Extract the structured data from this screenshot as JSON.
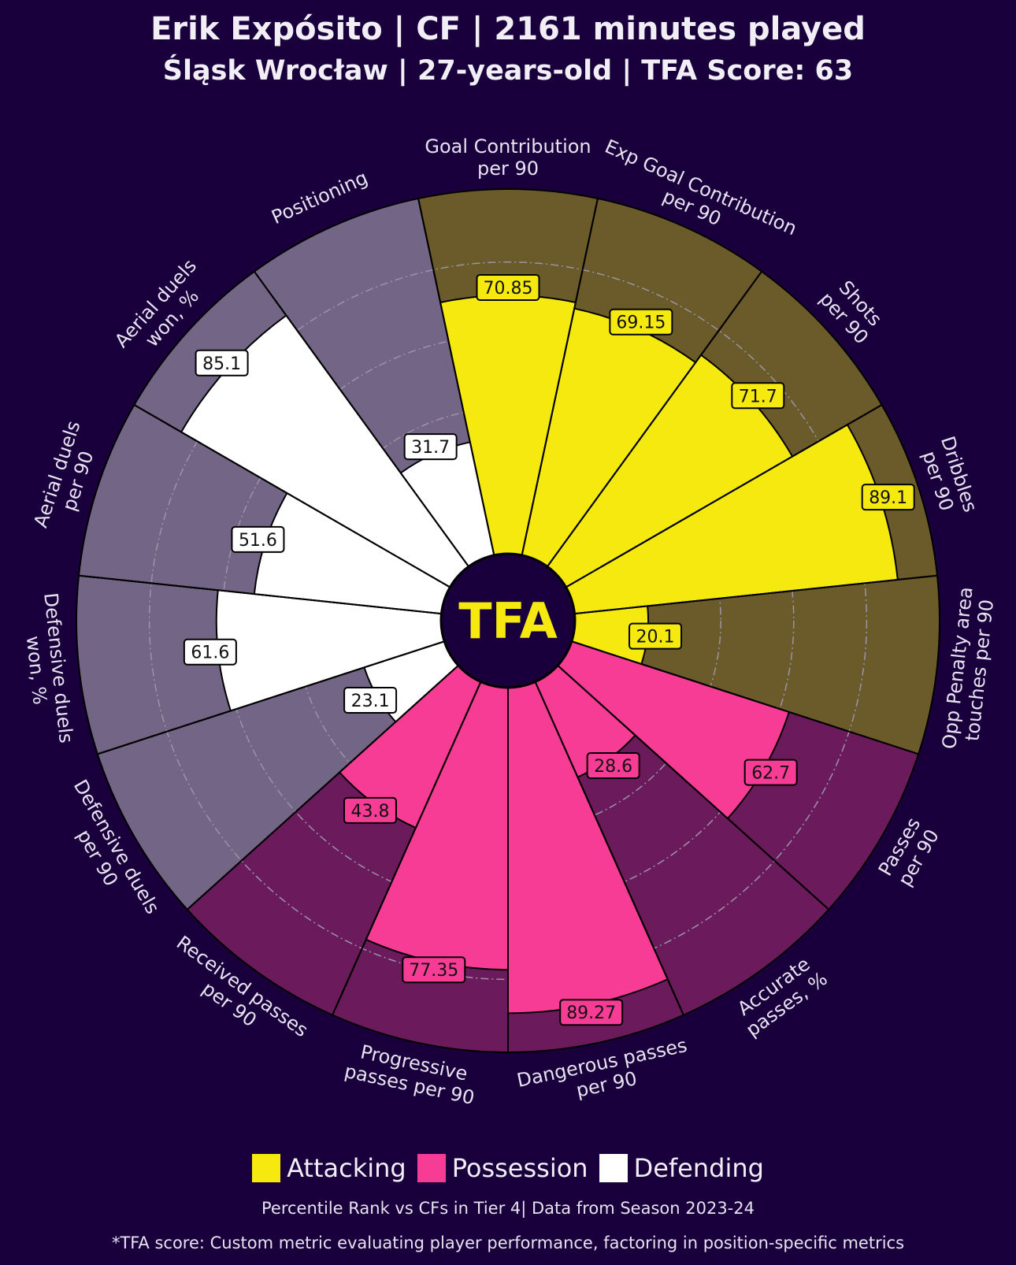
{
  "header": {
    "title": "Erik Expósito | CF | 2161 minutes played",
    "subtitle": "Śląsk Wrocław | 27-years-old | TFA Score: 63"
  },
  "logo_text": "TFA",
  "colors": {
    "background": "#19003c",
    "Attacking": "#f5e90f",
    "Attacking_bg": "#6b5a2a",
    "Possession": "#f73c96",
    "Possession_bg": "#6b1a5b",
    "Defending": "#ffffff",
    "Defending_bg": "#736585"
  },
  "legend": [
    {
      "label": "Attacking",
      "color": "#f5e90f"
    },
    {
      "label": "Possession",
      "color": "#f73c96"
    },
    {
      "label": "Defending",
      "color": "#ffffff"
    }
  ],
  "footer": {
    "note": "Percentile Rank vs CFs in Tier 4| Data from Season 2023-24",
    "disclaimer": "*TFA score: Custom metric evaluating player performance, factoring in position-specific metrics"
  },
  "chart_data": {
    "type": "pie",
    "subtype": "radial pizza (percentile)",
    "range": [
      0,
      100
    ],
    "gridlines": [
      20,
      40,
      60,
      80
    ],
    "slices": [
      {
        "label": "Goal Contribution\nper 90",
        "value": 70.85,
        "display": "70.85",
        "category": "Attacking"
      },
      {
        "label": "Exp Goal Contribution\nper 90",
        "value": 69.15,
        "display": "69.15",
        "category": "Attacking"
      },
      {
        "label": "Shots\nper 90",
        "value": 71.7,
        "display": "71.7",
        "category": "Attacking"
      },
      {
        "label": "Dribbles\nper 90",
        "value": 89.1,
        "display": "89.1",
        "category": "Attacking"
      },
      {
        "label": "Opp Penalty area\ntouches per 90",
        "value": 20.1,
        "display": "20.1",
        "category": "Attacking"
      },
      {
        "label": "Passes\nper 90",
        "value": 62.7,
        "display": "62.7",
        "category": "Possession"
      },
      {
        "label": "Accurate\npasses, %",
        "value": 28.6,
        "display": "28.6",
        "category": "Possession"
      },
      {
        "label": "Dangerous passes\nper 90",
        "value": 89.27,
        "display": "89.27",
        "category": "Possession"
      },
      {
        "label": "Progressive\npasses per 90",
        "value": 77.35,
        "display": "77.35",
        "category": "Possession"
      },
      {
        "label": "Received passes\nper 90",
        "value": 43.8,
        "display": "43.8",
        "category": "Possession"
      },
      {
        "label": "Defensive duels\nper 90",
        "value": 23.1,
        "display": "23.1",
        "category": "Defending"
      },
      {
        "label": "Defensive duels\nwon, %",
        "value": 61.6,
        "display": "61.6",
        "category": "Defending"
      },
      {
        "label": "Aerial duels\nper 90",
        "value": 51.6,
        "display": "51.6",
        "category": "Defending"
      },
      {
        "label": "Aerial duels\nwon, %",
        "value": 85.1,
        "display": "85.1",
        "category": "Defending"
      },
      {
        "label": "Positioning",
        "value": 31.7,
        "display": "31.7",
        "category": "Defending"
      }
    ]
  }
}
